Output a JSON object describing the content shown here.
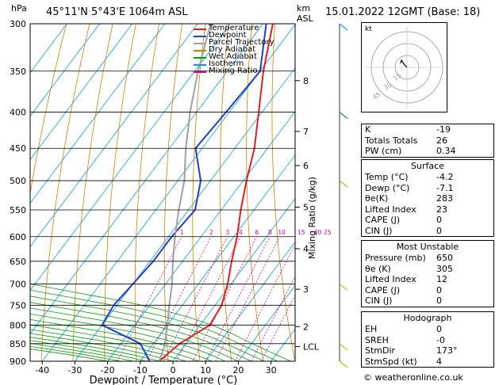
{
  "header": {
    "location": "45°11'N  5°43'E  1064m  ASL",
    "datetime": "15.01.2022  12GMT  (Base: 18)",
    "hpa_label": "hPa",
    "km_label": "km",
    "asl_label": "ASL"
  },
  "footer": {
    "credit": "© weatheronline.co.uk"
  },
  "legend": [
    {
      "label": "Temperature",
      "color": "#e02020"
    },
    {
      "label": "Dewpoint",
      "color": "#1f3fd0"
    },
    {
      "label": "Parcel Trajectory",
      "color": "#a0a0a0"
    },
    {
      "label": "Dry Adiabat",
      "color": "#d08000"
    },
    {
      "label": "Wet Adiabat",
      "color": "#00a000"
    },
    {
      "label": "Isotherm",
      "color": "#00a0e0"
    },
    {
      "label": "Mixing Ratio",
      "color": "#d000a0"
    }
  ],
  "chart_data": {
    "type": "line",
    "xlabel": "Dewpoint / Temperature (°C)",
    "ylabel": "Mixing Ratio (g/kg)",
    "x_ticks": [
      -40,
      -30,
      -20,
      -10,
      0,
      10,
      20,
      30
    ],
    "pressure_levels": [
      300,
      350,
      400,
      450,
      500,
      550,
      600,
      650,
      700,
      750,
      800,
      850,
      900
    ],
    "km_ticks": [
      {
        "label": "8",
        "p": 361
      },
      {
        "label": "7",
        "p": 426
      },
      {
        "label": "6",
        "p": 476
      },
      {
        "label": "5",
        "p": 545
      },
      {
        "label": "4",
        "p": 624
      },
      {
        "label": "3",
        "p": 712
      },
      {
        "label": "2",
        "p": 804
      },
      {
        "label": "LCL",
        "p": 858
      }
    ],
    "mixing_ratio_labels": [
      "1",
      "2",
      "3",
      "4",
      "6",
      "8",
      "10",
      "15",
      "20",
      "25"
    ],
    "series": [
      {
        "name": "Temperature",
        "points": [
          [
            900,
            -4.2
          ],
          [
            850,
            -2
          ],
          [
            800,
            3
          ],
          [
            750,
            2
          ],
          [
            700,
            -1
          ],
          [
            650,
            -5
          ],
          [
            600,
            -9
          ],
          [
            550,
            -14
          ],
          [
            500,
            -19
          ],
          [
            450,
            -24
          ],
          [
            400,
            -31
          ],
          [
            350,
            -39
          ],
          [
            300,
            -47
          ]
        ]
      },
      {
        "name": "Dewpoint",
        "points": [
          [
            900,
            -7.1
          ],
          [
            850,
            -14
          ],
          [
            800,
            -30
          ],
          [
            750,
            -31
          ],
          [
            700,
            -30
          ],
          [
            650,
            -29
          ],
          [
            600,
            -29
          ],
          [
            550,
            -28
          ],
          [
            500,
            -33
          ],
          [
            450,
            -42
          ],
          [
            400,
            -41
          ],
          [
            350,
            -40
          ],
          [
            300,
            -49
          ]
        ]
      },
      {
        "name": "Parcel Trajectory",
        "points": [
          [
            900,
            -4.2
          ],
          [
            858,
            -6
          ],
          [
            800,
            -10
          ],
          [
            750,
            -14
          ],
          [
            700,
            -18
          ],
          [
            650,
            -23
          ],
          [
            600,
            -28
          ],
          [
            550,
            -33
          ],
          [
            500,
            -38
          ],
          [
            450,
            -45
          ],
          [
            400,
            -52
          ],
          [
            350,
            -59
          ],
          [
            300,
            -66
          ]
        ]
      }
    ]
  },
  "indices": {
    "k_label": "K",
    "k_value": "-19",
    "tt_label": "Totals Totals",
    "tt_value": "26",
    "pw_label": "PW (cm)",
    "pw_value": "0.34"
  },
  "surface": {
    "title": "Surface",
    "rows": [
      {
        "label": "Temp (°C)",
        "value": "-4.2"
      },
      {
        "label": "Dewp (°C)",
        "value": "-7.1"
      },
      {
        "label": "θe(K)",
        "value": "283"
      },
      {
        "label": "Lifted Index",
        "value": "23"
      },
      {
        "label": "CAPE (J)",
        "value": "0"
      },
      {
        "label": "CIN (J)",
        "value": "0"
      }
    ]
  },
  "most_unstable": {
    "title": "Most Unstable",
    "rows": [
      {
        "label": "Pressure (mb)",
        "value": "650"
      },
      {
        "label": "θe (K)",
        "value": "305"
      },
      {
        "label": "Lifted Index",
        "value": "12"
      },
      {
        "label": "CAPE (J)",
        "value": "0"
      },
      {
        "label": "CIN (J)",
        "value": "0"
      }
    ]
  },
  "hodograph": {
    "title": "Hodograph",
    "box_label": "kt",
    "ring_labels": [
      "15",
      "30",
      "45"
    ],
    "rows": [
      {
        "label": "EH",
        "value": "0"
      },
      {
        "label": "SREH",
        "value": "-0"
      },
      {
        "label": "StmDir",
        "value": "173°"
      },
      {
        "label": "StmSpd (kt)",
        "value": "4"
      }
    ]
  }
}
